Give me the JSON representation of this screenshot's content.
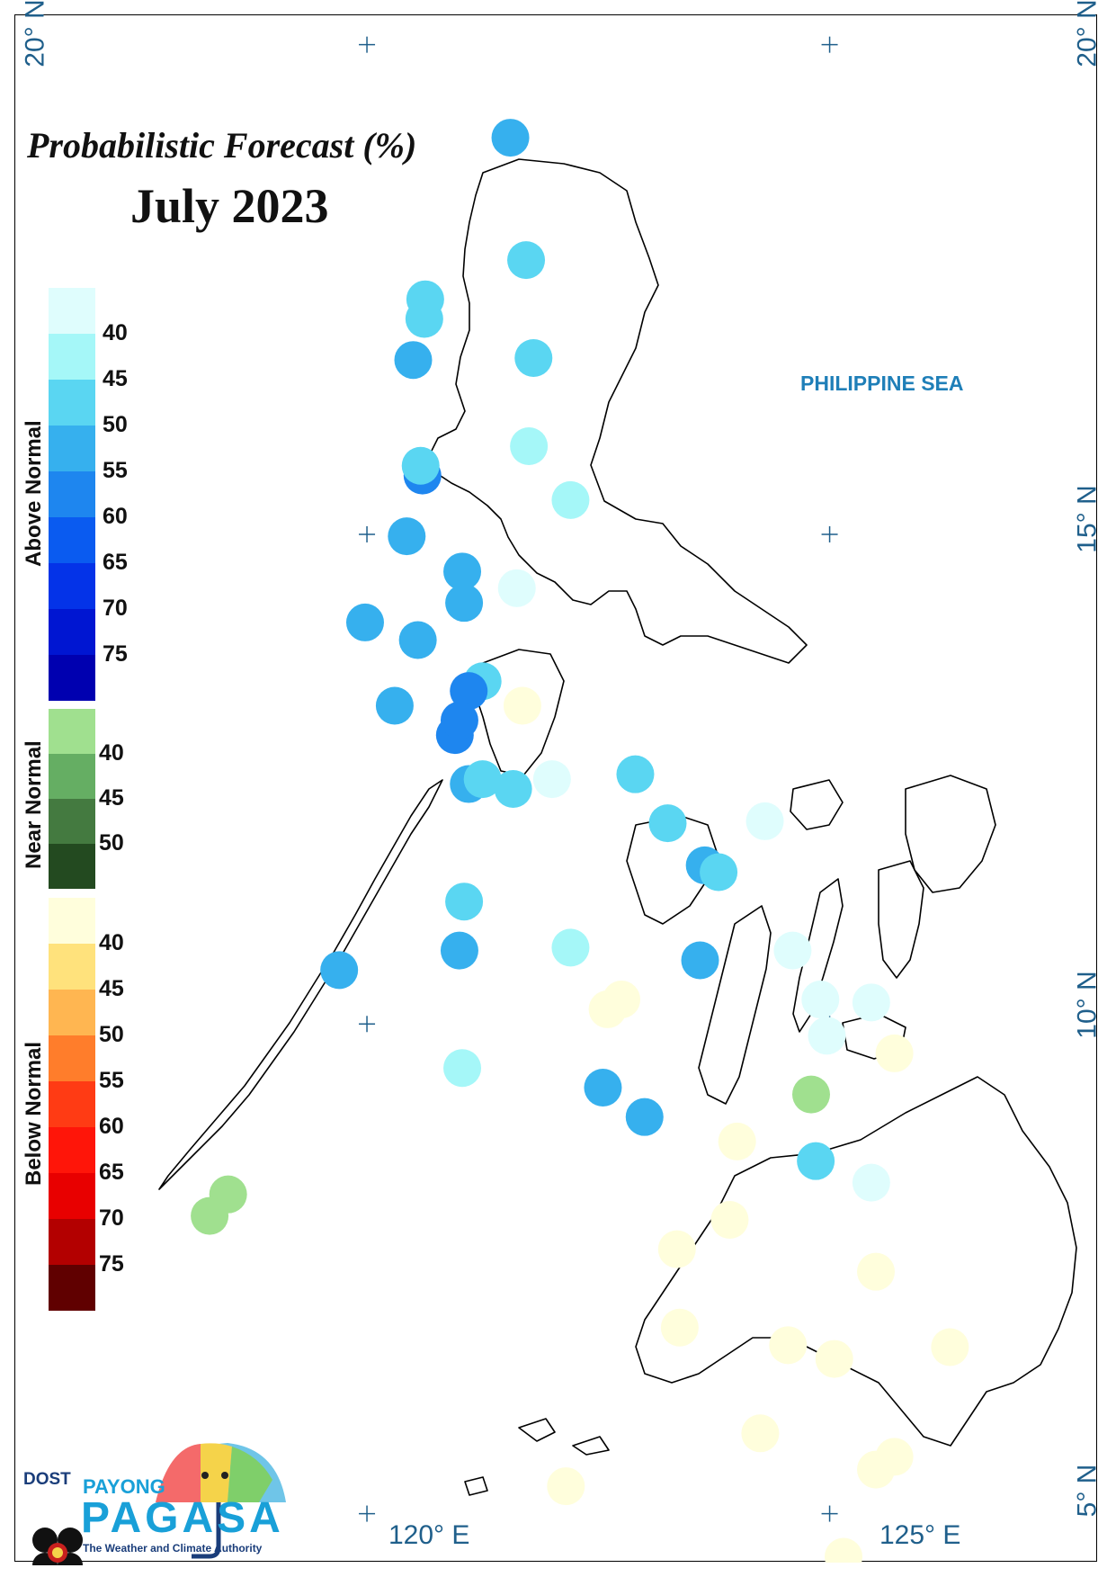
{
  "title": "Probabilistic Forecast (%)",
  "subtitle": "July 2023",
  "sea_label": "PHILIPPINE SEA",
  "coords": {
    "lat20_left": "20° N",
    "lat20_right": "20° N",
    "lat15_right": "15° N",
    "lat10_right": "10° N",
    "lat5_right": "5° N",
    "lon120": "120° E",
    "lon125": "125° E"
  },
  "legend": {
    "above": {
      "label": "Above Normal",
      "colors": [
        "#dffdfd",
        "#a5f7f8",
        "#5ad6f2",
        "#36b0ee",
        "#1e86ef",
        "#0a5bf0",
        "#0433e8",
        "#0016d2",
        "#0000b0"
      ],
      "ticks": [
        "40",
        "45",
        "50",
        "55",
        "60",
        "65",
        "70",
        "75"
      ]
    },
    "near": {
      "label": "Near Normal",
      "colors": [
        "#a0e08f",
        "#65ae63",
        "#447a40",
        "#234a20"
      ],
      "ticks": [
        "40",
        "45",
        "50"
      ]
    },
    "below": {
      "label": "Below Normal",
      "colors": [
        "#fffedc",
        "#ffe27c",
        "#ffb651",
        "#ff7d2b",
        "#ff3b14",
        "#ff1509",
        "#e80000",
        "#b30000",
        "#600000"
      ],
      "ticks": [
        "40",
        "45",
        "50",
        "55",
        "60",
        "65",
        "70",
        "75"
      ]
    }
  },
  "map_extent": {
    "lon": [
      116.2,
      127.9
    ],
    "lat": [
      4.5,
      20.3
    ]
  },
  "stations": [
    {
      "lon": 121.55,
      "lat": 19.05,
      "color": "#36b0ee"
    },
    {
      "lon": 121.72,
      "lat": 17.8,
      "color": "#5ad6f2"
    },
    {
      "lon": 120.63,
      "lat": 17.4,
      "color": "#5ad6f2"
    },
    {
      "lon": 120.62,
      "lat": 17.2,
      "color": "#5ad6f2"
    },
    {
      "lon": 120.5,
      "lat": 16.78,
      "color": "#36b0ee"
    },
    {
      "lon": 121.8,
      "lat": 16.8,
      "color": "#5ad6f2"
    },
    {
      "lon": 121.75,
      "lat": 15.9,
      "color": "#a5f7f8"
    },
    {
      "lon": 120.6,
      "lat": 15.6,
      "color": "#1e86ef"
    },
    {
      "lon": 120.58,
      "lat": 15.7,
      "color": "#5ad6f2"
    },
    {
      "lon": 122.2,
      "lat": 15.35,
      "color": "#a5f7f8"
    },
    {
      "lon": 120.43,
      "lat": 14.98,
      "color": "#36b0ee"
    },
    {
      "lon": 121.03,
      "lat": 14.62,
      "color": "#36b0ee"
    },
    {
      "lon": 121.62,
      "lat": 14.45,
      "color": "#dffdfd"
    },
    {
      "lon": 121.05,
      "lat": 14.3,
      "color": "#36b0ee"
    },
    {
      "lon": 119.98,
      "lat": 14.1,
      "color": "#36b0ee"
    },
    {
      "lon": 120.55,
      "lat": 13.92,
      "color": "#36b0ee"
    },
    {
      "lon": 121.25,
      "lat": 13.5,
      "color": "#5ad6f2"
    },
    {
      "lon": 121.1,
      "lat": 13.4,
      "color": "#1e86ef"
    },
    {
      "lon": 121.68,
      "lat": 13.25,
      "color": "#fffedc"
    },
    {
      "lon": 120.3,
      "lat": 13.25,
      "color": "#36b0ee"
    },
    {
      "lon": 120.95,
      "lat": 12.95,
      "color": "#1e86ef"
    },
    {
      "lon": 121.0,
      "lat": 13.1,
      "color": "#1e86ef"
    },
    {
      "lon": 121.1,
      "lat": 12.45,
      "color": "#36b0ee"
    },
    {
      "lon": 121.25,
      "lat": 12.5,
      "color": "#5ad6f2"
    },
    {
      "lon": 121.58,
      "lat": 12.4,
      "color": "#5ad6f2"
    },
    {
      "lon": 122.0,
      "lat": 12.5,
      "color": "#dffdfd"
    },
    {
      "lon": 122.9,
      "lat": 12.55,
      "color": "#5ad6f2"
    },
    {
      "lon": 123.25,
      "lat": 12.05,
      "color": "#5ad6f2"
    },
    {
      "lon": 124.3,
      "lat": 12.07,
      "color": "#dffdfd"
    },
    {
      "lon": 123.65,
      "lat": 11.62,
      "color": "#36b0ee"
    },
    {
      "lon": 123.8,
      "lat": 11.55,
      "color": "#5ad6f2"
    },
    {
      "lon": 121.05,
      "lat": 11.25,
      "color": "#5ad6f2"
    },
    {
      "lon": 122.2,
      "lat": 10.78,
      "color": "#a5f7f8"
    },
    {
      "lon": 121.0,
      "lat": 10.75,
      "color": "#36b0ee"
    },
    {
      "lon": 123.6,
      "lat": 10.65,
      "color": "#36b0ee"
    },
    {
      "lon": 124.6,
      "lat": 10.75,
      "color": "#dffdfd"
    },
    {
      "lon": 119.7,
      "lat": 10.55,
      "color": "#36b0ee"
    },
    {
      "lon": 122.75,
      "lat": 10.25,
      "color": "#fffedc"
    },
    {
      "lon": 122.6,
      "lat": 10.15,
      "color": "#fffedc"
    },
    {
      "lon": 124.9,
      "lat": 10.25,
      "color": "#dffdfd"
    },
    {
      "lon": 125.45,
      "lat": 10.22,
      "color": "#dffdfd"
    },
    {
      "lon": 124.97,
      "lat": 9.88,
      "color": "#dffdfd"
    },
    {
      "lon": 125.7,
      "lat": 9.7,
      "color": "#fffedc"
    },
    {
      "lon": 121.03,
      "lat": 9.55,
      "color": "#a5f7f8"
    },
    {
      "lon": 122.55,
      "lat": 9.35,
      "color": "#36b0ee"
    },
    {
      "lon": 124.8,
      "lat": 9.28,
      "color": "#a0e08f"
    },
    {
      "lon": 123.0,
      "lat": 9.05,
      "color": "#36b0ee"
    },
    {
      "lon": 124.0,
      "lat": 8.8,
      "color": "#fffedc"
    },
    {
      "lon": 124.85,
      "lat": 8.6,
      "color": "#5ad6f2"
    },
    {
      "lon": 125.45,
      "lat": 8.38,
      "color": "#dffdfd"
    },
    {
      "lon": 118.5,
      "lat": 8.26,
      "color": "#a0e08f"
    },
    {
      "lon": 118.3,
      "lat": 8.04,
      "color": "#a0e08f"
    },
    {
      "lon": 123.92,
      "lat": 8.0,
      "color": "#fffedc"
    },
    {
      "lon": 123.35,
      "lat": 7.7,
      "color": "#fffedc"
    },
    {
      "lon": 125.5,
      "lat": 7.47,
      "color": "#fffedc"
    },
    {
      "lon": 123.38,
      "lat": 6.9,
      "color": "#fffedc"
    },
    {
      "lon": 124.55,
      "lat": 6.72,
      "color": "#fffedc"
    },
    {
      "lon": 125.05,
      "lat": 6.58,
      "color": "#fffedc"
    },
    {
      "lon": 126.3,
      "lat": 6.7,
      "color": "#fffedc"
    },
    {
      "lon": 124.25,
      "lat": 5.82,
      "color": "#fffedc"
    },
    {
      "lon": 125.7,
      "lat": 5.58,
      "color": "#fffedc"
    },
    {
      "lon": 125.5,
      "lat": 5.45,
      "color": "#fffedc"
    },
    {
      "lon": 122.15,
      "lat": 5.28,
      "color": "#fffedc"
    },
    {
      "lon": 125.15,
      "lat": 4.56,
      "color": "#fffedc"
    }
  ],
  "logo": {
    "dost": "DOST",
    "payong": "PAYONG",
    "pagasa": "PAGASA",
    "tagline": "The Weather and Climate Authority"
  }
}
